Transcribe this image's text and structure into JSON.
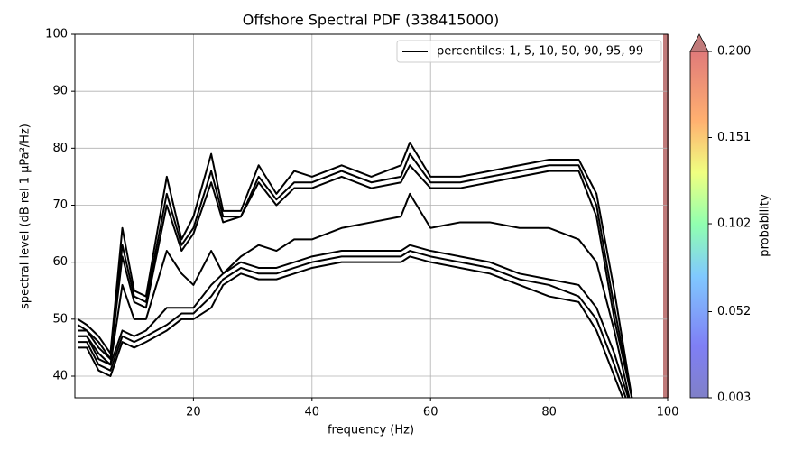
{
  "chart_data": {
    "type": "line",
    "title": "Offshore Spectral PDF (338415000)",
    "x_label": "frequency (Hz)",
    "y_label": "spectral level (dB rel 1 µPa²/Hz)",
    "legend_label": "percentiles: 1, 5, 10, 50, 90, 95, 99",
    "legend_position": "upper right",
    "xlim": [
      0,
      100
    ],
    "ylim": [
      36.2,
      100
    ],
    "xticks": [
      20,
      40,
      60,
      80,
      100
    ],
    "yticks": [
      40,
      50,
      60,
      70,
      80,
      90,
      100
    ],
    "grid": true,
    "x": [
      0.5,
      2,
      4,
      6,
      8,
      10,
      12,
      15.5,
      18,
      20,
      23,
      25,
      28,
      31,
      34,
      37,
      40,
      45,
      50,
      55,
      56.5,
      60,
      65,
      70,
      75,
      80,
      85,
      88,
      91,
      94
    ],
    "series": [
      {
        "color": "#000000",
        "values": [
          45,
          45,
          41,
          40,
          46,
          45,
          46,
          48,
          50,
          50,
          52,
          56,
          58,
          57,
          57,
          58,
          59,
          60,
          60,
          60,
          61,
          60,
          59,
          58,
          56,
          54,
          53,
          48,
          40,
          32
        ]
      },
      {
        "color": "#000000",
        "values": [
          46,
          46,
          42,
          41,
          47,
          46,
          47,
          49,
          51,
          51,
          54,
          57,
          59,
          58,
          58,
          59,
          60,
          61,
          61,
          61,
          62,
          61,
          60,
          59,
          57,
          56,
          54,
          50,
          42,
          33
        ]
      },
      {
        "color": "#000000",
        "values": [
          47,
          47,
          43,
          42,
          48,
          47,
          48,
          52,
          52,
          52,
          56,
          58,
          60,
          59,
          59,
          60,
          61,
          62,
          62,
          62,
          63,
          62,
          61,
          60,
          58,
          57,
          56,
          52,
          44,
          34
        ]
      },
      {
        "color": "#000000",
        "values": [
          47,
          47,
          44,
          42,
          56,
          50,
          50,
          62,
          58,
          56,
          62,
          58,
          61,
          63,
          62,
          64,
          64,
          66,
          67,
          68,
          72,
          66,
          67,
          67,
          66,
          66,
          64,
          60,
          48,
          34
        ]
      },
      {
        "color": "#000000",
        "values": [
          48,
          48,
          45,
          43,
          61,
          53,
          52,
          70,
          62,
          65,
          74,
          67,
          68,
          74,
          70,
          73,
          73,
          75,
          73,
          74,
          77,
          73,
          73,
          74,
          75,
          76,
          76,
          68,
          50,
          36
        ]
      },
      {
        "color": "#000000",
        "values": [
          49,
          48,
          46,
          43,
          63,
          54,
          53,
          72,
          63,
          66,
          76,
          68,
          68,
          75,
          71,
          74,
          74,
          76,
          74,
          75,
          79,
          74,
          74,
          75,
          76,
          77,
          77,
          70,
          52,
          36
        ]
      },
      {
        "color": "#000000",
        "values": [
          50,
          49,
          47,
          44,
          66,
          55,
          54,
          75,
          64,
          68,
          79,
          69,
          69,
          77,
          72,
          76,
          75,
          77,
          75,
          77,
          81,
          75,
          75,
          76,
          77,
          78,
          78,
          72,
          55,
          36
        ]
      }
    ],
    "colorbar": {
      "label": "probability",
      "lim": [
        0.003,
        0.2
      ],
      "ticks": [
        {
          "value": 0.003,
          "label": "0.003"
        },
        {
          "value": 0.052,
          "label": "0.052"
        },
        {
          "value": 0.102,
          "label": "0.102"
        },
        {
          "value": 0.151,
          "label": "0.151"
        },
        {
          "value": 0.2,
          "label": "0.200"
        }
      ]
    }
  }
}
